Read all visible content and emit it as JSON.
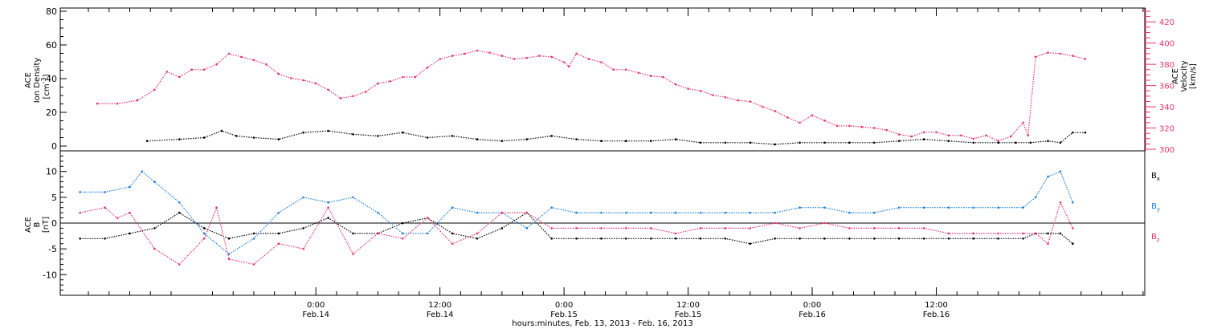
{
  "chart_data": [
    {
      "type": "scatter",
      "panel": "top",
      "ylabel_lines": [
        "ACE",
        "Ion Density",
        "[cm",
        "-3",
        "]"
      ],
      "ylim": [
        0,
        80
      ],
      "yticks": [
        0,
        20,
        40,
        60,
        80
      ],
      "y2label_lines": [
        "ACE",
        "Velocity",
        "[km/s]"
      ],
      "y2lim": [
        300,
        430
      ],
      "y2ticks": [
        300,
        320,
        340,
        360,
        380,
        400,
        420
      ],
      "grid": false,
      "series": [
        {
          "name": "",
          "axis": "left",
          "color": "#000000",
          "x": [
            -0.68,
            -0.55,
            -0.45,
            -0.38,
            -0.32,
            -0.25,
            -0.15,
            -0.05,
            0.05,
            0.15,
            0.25,
            0.35,
            0.45,
            0.55,
            0.65,
            0.75,
            0.85,
            0.95,
            1.05,
            1.15,
            1.25,
            1.35,
            1.45,
            1.55,
            1.65,
            1.75,
            1.85,
            1.95,
            2.05,
            2.15,
            2.25,
            2.35,
            2.45,
            2.55,
            2.65,
            2.75,
            2.82,
            2.88,
            2.95,
            3.0,
            3.05,
            3.1
          ],
          "y": [
            3,
            4,
            5,
            9,
            6,
            5,
            4,
            8,
            9,
            7,
            6,
            8,
            5,
            6,
            4,
            3,
            4,
            6,
            4,
            3,
            3,
            3,
            4,
            2,
            2,
            2,
            1,
            2,
            2,
            2,
            2,
            3,
            4,
            3,
            2,
            2,
            2,
            2,
            3,
            2,
            8,
            8
          ]
        },
        {
          "name": "",
          "axis": "right",
          "color": "#e8346a",
          "x": [
            -0.88,
            -0.8,
            -0.72,
            -0.65,
            -0.6,
            -0.55,
            -0.5,
            -0.45,
            -0.4,
            -0.35,
            -0.3,
            -0.25,
            -0.2,
            -0.15,
            -0.1,
            -0.05,
            0.0,
            0.05,
            0.1,
            0.15,
            0.2,
            0.25,
            0.3,
            0.35,
            0.4,
            0.45,
            0.5,
            0.55,
            0.6,
            0.65,
            0.7,
            0.75,
            0.8,
            0.85,
            0.9,
            0.95,
            1.0,
            1.02,
            1.05,
            1.1,
            1.15,
            1.2,
            1.25,
            1.3,
            1.35,
            1.4,
            1.45,
            1.5,
            1.55,
            1.6,
            1.65,
            1.7,
            1.75,
            1.8,
            1.85,
            1.9,
            1.95,
            2.0,
            2.05,
            2.1,
            2.15,
            2.2,
            2.25,
            2.3,
            2.35,
            2.4,
            2.45,
            2.5,
            2.55,
            2.6,
            2.65,
            2.7,
            2.75,
            2.8,
            2.85,
            2.87,
            2.9,
            2.95,
            3.0,
            3.05,
            3.1
          ],
          "y": [
            343,
            343,
            346,
            356,
            373,
            368,
            375,
            375,
            380,
            390,
            387,
            384,
            380,
            371,
            367,
            365,
            362,
            356,
            348,
            350,
            354,
            362,
            364,
            368,
            368,
            377,
            385,
            388,
            390,
            393,
            391,
            388,
            385,
            386,
            388,
            387,
            382,
            378,
            390,
            385,
            382,
            375,
            375,
            372,
            369,
            368,
            361,
            357,
            355,
            351,
            349,
            346,
            345,
            340,
            336,
            330,
            325,
            332,
            327,
            322,
            322,
            321,
            320,
            318,
            314,
            312,
            316,
            316,
            313,
            313,
            310,
            313,
            308,
            312,
            325,
            313,
            387,
            391,
            390,
            388,
            385
          ]
        }
      ]
    },
    {
      "type": "scatter",
      "panel": "bottom",
      "ylabel_lines": [
        "ACE",
        "B",
        "[nT]"
      ],
      "ylim": [
        -14,
        14
      ],
      "yticks": [
        -10,
        -5,
        0,
        5,
        10
      ],
      "zero_line": true,
      "grid": false,
      "xlabel": "hours:minutes, Feb. 13, 2013 - Feb. 16, 2013",
      "xticks": [
        {
          "x": 0.0,
          "time": "0:00",
          "date": "Feb.14"
        },
        {
          "x": 0.5,
          "time": "12:00",
          "date": "Feb.14"
        },
        {
          "x": 1.0,
          "time": "0:00",
          "date": "Feb.15"
        },
        {
          "x": 1.5,
          "time": "12:00",
          "date": "Feb.15"
        },
        {
          "x": 2.0,
          "time": "0:00",
          "date": "Feb.16"
        },
        {
          "x": 2.5,
          "time": "12:00",
          "date": "Feb.16"
        }
      ],
      "xlim": [
        -1.03,
        3.34
      ],
      "legend": [
        {
          "label": "B",
          "sub": "x",
          "color": "#000000"
        },
        {
          "label": "B",
          "sub": "y",
          "color": "#1e7fdc"
        },
        {
          "label": "B",
          "sub": "z",
          "color": "#e8346a"
        }
      ],
      "series": [
        {
          "name": "Bx",
          "color": "#000000",
          "x": [
            -0.95,
            -0.85,
            -0.75,
            -0.65,
            -0.55,
            -0.45,
            -0.35,
            -0.25,
            -0.15,
            -0.05,
            0.05,
            0.15,
            0.25,
            0.35,
            0.45,
            0.55,
            0.65,
            0.75,
            0.85,
            0.95,
            1.05,
            1.15,
            1.25,
            1.35,
            1.45,
            1.55,
            1.65,
            1.75,
            1.85,
            1.95,
            2.05,
            2.15,
            2.25,
            2.35,
            2.45,
            2.55,
            2.65,
            2.75,
            2.85,
            2.9,
            2.95,
            3.0,
            3.05
          ],
          "y": [
            -3,
            -3,
            -2,
            -1,
            2,
            -1,
            -3,
            -2,
            -2,
            -1,
            1,
            -2,
            -2,
            0,
            1,
            -2,
            -3,
            -1,
            2,
            -3,
            -3,
            -3,
            -3,
            -3,
            -3,
            -3,
            -3,
            -4,
            -3,
            -3,
            -3,
            -3,
            -3,
            -3,
            -3,
            -3,
            -3,
            -3,
            -3,
            -2,
            -2,
            -2,
            -4
          ]
        },
        {
          "name": "By",
          "color": "#1e7fdc",
          "x": [
            -0.95,
            -0.85,
            -0.75,
            -0.7,
            -0.65,
            -0.55,
            -0.45,
            -0.35,
            -0.25,
            -0.15,
            -0.05,
            0.05,
            0.15,
            0.25,
            0.35,
            0.45,
            0.55,
            0.65,
            0.75,
            0.85,
            0.95,
            1.05,
            1.15,
            1.25,
            1.35,
            1.45,
            1.55,
            1.65,
            1.75,
            1.85,
            1.95,
            2.05,
            2.15,
            2.25,
            2.35,
            2.45,
            2.55,
            2.65,
            2.75,
            2.85,
            2.9,
            2.95,
            3.0,
            3.05
          ],
          "y": [
            6,
            6,
            7,
            10,
            8,
            4,
            -2,
            -6,
            -3,
            2,
            5,
            4,
            5,
            2,
            -2,
            -2,
            3,
            2,
            2,
            -1,
            3,
            2,
            2,
            2,
            2,
            2,
            2,
            2,
            2,
            2,
            3,
            3,
            2,
            2,
            3,
            3,
            3,
            3,
            3,
            3,
            5,
            9,
            10,
            4
          ]
        },
        {
          "name": "Bz",
          "color": "#e8346a",
          "x": [
            -0.95,
            -0.85,
            -0.8,
            -0.75,
            -0.65,
            -0.55,
            -0.45,
            -0.4,
            -0.35,
            -0.25,
            -0.15,
            -0.05,
            0.05,
            0.15,
            0.25,
            0.35,
            0.45,
            0.55,
            0.65,
            0.75,
            0.85,
            0.95,
            1.05,
            1.15,
            1.25,
            1.35,
            1.45,
            1.55,
            1.65,
            1.75,
            1.85,
            1.95,
            2.05,
            2.15,
            2.25,
            2.35,
            2.45,
            2.55,
            2.65,
            2.75,
            2.85,
            2.9,
            2.95,
            3.0,
            3.05
          ],
          "y": [
            2,
            3,
            1,
            2,
            -5,
            -8,
            -3,
            3,
            -7,
            -8,
            -4,
            -5,
            3,
            -6,
            -2,
            -3,
            1,
            -4,
            -2,
            2,
            2,
            -1,
            -1,
            -1,
            -1,
            -1,
            -2,
            -1,
            -1,
            -1,
            0,
            -1,
            0,
            -1,
            -1,
            -1,
            -1,
            -2,
            -2,
            -2,
            -2,
            -2,
            -4,
            4,
            -1
          ]
        }
      ]
    }
  ]
}
